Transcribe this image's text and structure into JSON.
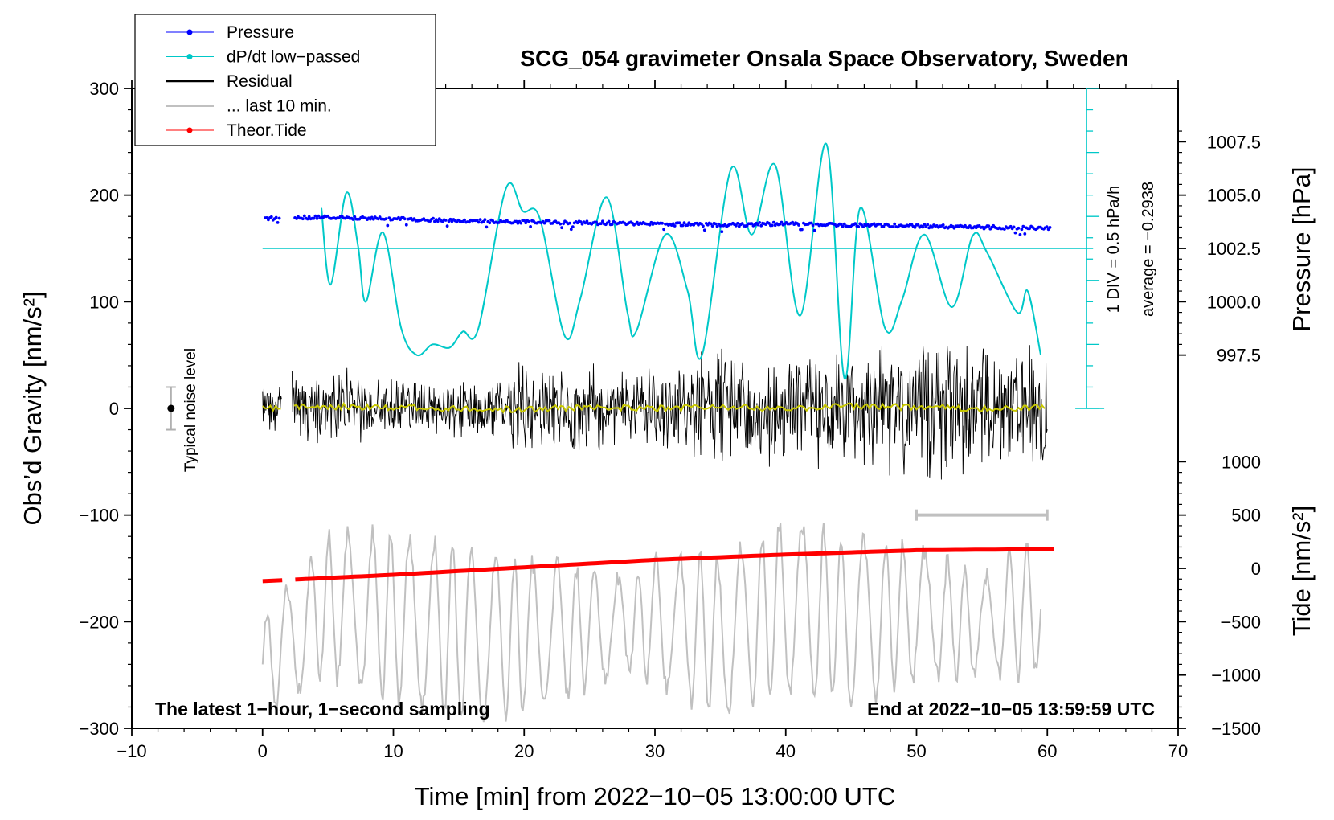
{
  "chart_data": {
    "type": "line",
    "title": "SCG_054 gravimeter Onsala Space Observatory, Sweden",
    "xlabel": "Time [min] from 2022−10−05 13:00:00 UTC",
    "ylabel": "Obs’d Gravity [nm/s²]",
    "ylabel_right_top": "Pressure [hPa]",
    "ylabel_right_bottom": "Tide [nm/s²]",
    "xlim": [
      -10,
      70
    ],
    "ylim": [
      -300,
      300
    ],
    "x_ticks": [
      -10,
      0,
      10,
      20,
      30,
      40,
      50,
      60,
      70
    ],
    "x_tick_labels": [
      "−10",
      "0",
      "10",
      "20",
      "30",
      "40",
      "50",
      "60",
      "70"
    ],
    "y_ticks": [
      -300,
      -200,
      -100,
      0,
      100,
      200,
      300
    ],
    "y_tick_labels": [
      "−300",
      "−200",
      "−100",
      "0",
      "100",
      "200",
      "300"
    ],
    "pressure_ticks": [
      997.5,
      1000.0,
      1002.5,
      1005.0,
      1007.5
    ],
    "pressure_tick_labels": [
      "997.5",
      "1000.0",
      "1002.5",
      "1005.0",
      "1007.5"
    ],
    "pressure_to_gravity": {
      "p0": 1002.5,
      "g0": 150,
      "scale": 20
    },
    "tide_ticks": [
      -1500,
      -1000,
      -500,
      0,
      500,
      1000
    ],
    "tide_tick_labels": [
      "−1500",
      "−1000",
      "−500",
      "0",
      "500",
      "1000"
    ],
    "tide_to_gravity": {
      "t0": 0,
      "g0": -150,
      "scale": 0.1
    },
    "legend": [
      {
        "label": "Pressure",
        "color": "#0000ff",
        "marker": true
      },
      {
        "label": "dP/dt low−passed",
        "color": "#00c8c8",
        "marker": true
      },
      {
        "label": "Residual",
        "color": "#000000",
        "marker": false
      },
      {
        "label": "... last 10 min.",
        "color": "#c0c0c0",
        "marker": false
      },
      {
        "label": "Theor.Tide",
        "color": "#ff0000",
        "marker": true
      }
    ],
    "dpdt_label": "1 DIV = 0.5 hPa/h",
    "average_label": "average = −0.2938",
    "noise_label": "Typical noise level",
    "noise_level": {
      "x": -7,
      "center": 0,
      "half_range": 20
    },
    "dpdt_axis_x": 63,
    "dpdt_baseline": 150,
    "last10_bar": {
      "x_start": 50,
      "x_end": 60,
      "y": -100
    },
    "footer_left": "The latest 1−hour, 1−second sampling",
    "footer_right": "End at 2022−10−05 13:59:59 UTC",
    "series": [
      {
        "name": "Pressure",
        "unit": "hPa",
        "x": [
          0.2,
          1,
          2.5,
          5,
          10,
          15,
          20,
          25,
          30,
          35,
          40,
          45,
          50,
          55,
          60
        ],
        "values": [
          1003.9,
          1003.9,
          1003.95,
          1003.95,
          1003.9,
          1003.8,
          1003.75,
          1003.7,
          1003.65,
          1003.6,
          1003.65,
          1003.6,
          1003.55,
          1003.5,
          1003.45
        ]
      },
      {
        "name": "dP/dt low-passed",
        "unit": "nm/s² (plotted)",
        "x": [
          4.5,
          5.2,
          6.4,
          7.3,
          7.9,
          9.2,
          10.6,
          11.8,
          13.0,
          14.3,
          15.3,
          16.5,
          18.6,
          19.9,
          21.2,
          23.1,
          24.3,
          26.3,
          27.9,
          28.6,
          30.8,
          32.5,
          33.6,
          35.8,
          37.4,
          39.2,
          41.1,
          43.1,
          44.5,
          45.7,
          47.6,
          48.9,
          50.6,
          52.7,
          54.3,
          55.4,
          57.7,
          58.5,
          59.5
        ],
        "values": [
          188,
          116,
          202,
          152,
          100,
          165,
          75,
          50,
          60,
          57,
          72,
          75,
          206,
          185,
          178,
          68,
          103,
          198,
          90,
          73,
          163,
          110,
          50,
          224,
          163,
          228,
          87,
          248,
          28,
          188,
          75,
          102,
          163,
          95,
          162,
          146,
          90,
          110,
          50
        ]
      },
      {
        "name": "Residual",
        "unit": "nm/s²",
        "x": [
          0,
          5,
          10,
          15,
          20,
          25,
          30,
          35,
          40,
          45,
          50,
          55,
          60
        ],
        "values": [
          0,
          2,
          1,
          0,
          -1,
          1,
          0,
          1,
          0,
          2,
          1,
          0,
          1
        ]
      },
      {
        "name": "... last 10 min.",
        "unit": "nm/s²",
        "x": [
          0,
          5,
          10,
          15,
          20,
          25,
          30,
          35,
          40,
          45,
          50,
          55,
          60
        ],
        "values": [
          -215,
          -160,
          -170,
          -185,
          -190,
          -180,
          -175,
          -190,
          -160,
          -175,
          -165,
          -180,
          -155
        ]
      },
      {
        "name": "Theor.Tide",
        "unit": "nm/s²",
        "x": [
          0,
          10,
          20,
          30,
          40,
          50,
          60
        ],
        "values": [
          -120,
          -60,
          10,
          80,
          130,
          170,
          180
        ]
      }
    ]
  }
}
